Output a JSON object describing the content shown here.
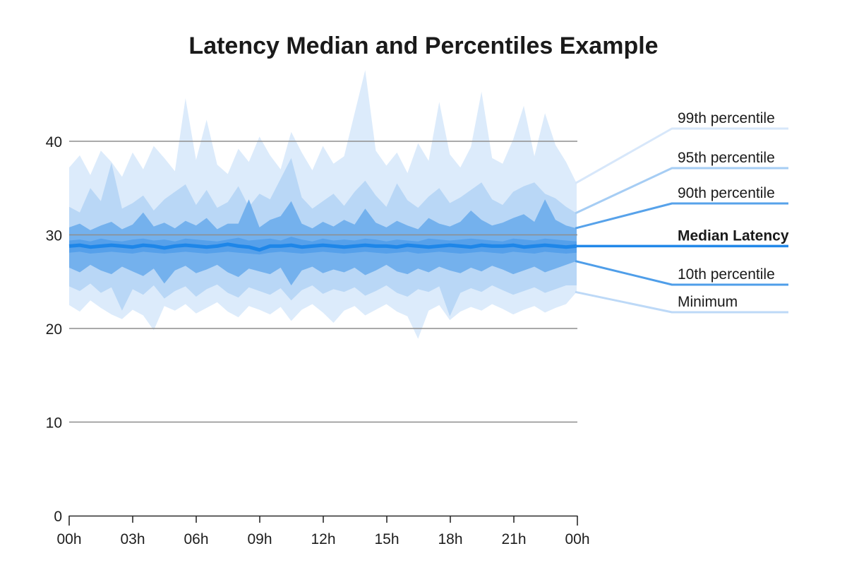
{
  "chart_data": {
    "type": "area",
    "title": "Latency Median and Percentiles Example",
    "xlabel": "",
    "ylabel": "",
    "x_ticks": [
      "00h",
      "03h",
      "06h",
      "09h",
      "12h",
      "15h",
      "18h",
      "21h",
      "00h"
    ],
    "y_ticks": [
      0,
      10,
      20,
      30,
      40
    ],
    "ylim": [
      0,
      48
    ],
    "grid": "horizontal",
    "legend_position": "right-callouts",
    "series": {
      "minimum": [
        22.5,
        21.8,
        23.0,
        22.2,
        21.5,
        21.0,
        22.0,
        21.4,
        19.8,
        22.4,
        21.9,
        22.6,
        21.6,
        22.2,
        22.8,
        21.8,
        21.2,
        22.4,
        22.0,
        21.5,
        22.3,
        20.8,
        22.0,
        22.6,
        21.7,
        20.6,
        21.9,
        22.4,
        21.4,
        22.0,
        22.6,
        21.8,
        21.3,
        18.9,
        21.9,
        22.5,
        20.9,
        21.8,
        22.3,
        21.9,
        22.6,
        22.1,
        21.5,
        22.0,
        22.4,
        21.7,
        22.2,
        22.6,
        23.9
      ],
      "p5": [
        24.5,
        24.0,
        24.8,
        23.8,
        24.4,
        21.9,
        24.2,
        23.6,
        24.6,
        23.2,
        24.0,
        24.5,
        23.4,
        24.2,
        24.7,
        23.8,
        23.3,
        24.4,
        24.0,
        23.6,
        24.3,
        23.0,
        24.1,
        24.6,
        23.7,
        24.2,
        23.9,
        24.4,
        23.5,
        24.0,
        24.6,
        23.8,
        23.4,
        24.2,
        23.9,
        24.5,
        21.3,
        23.8,
        24.3,
        23.9,
        24.6,
        24.1,
        23.6,
        24.0,
        24.4,
        23.8,
        24.2,
        24.6,
        24.6
      ],
      "p10": [
        26.5,
        26.0,
        26.8,
        26.2,
        25.8,
        26.6,
        26.1,
        25.6,
        26.4,
        24.8,
        26.2,
        26.7,
        25.9,
        26.3,
        26.8,
        26.0,
        25.5,
        26.4,
        26.1,
        25.8,
        26.5,
        24.6,
        26.2,
        26.6,
        25.9,
        26.3,
        26.0,
        26.5,
        25.7,
        26.2,
        26.8,
        26.1,
        25.8,
        26.4,
        26.0,
        26.6,
        26.2,
        25.9,
        26.5,
        26.1,
        26.7,
        26.3,
        25.8,
        26.2,
        26.6,
        26.0,
        26.4,
        26.8,
        27.2
      ],
      "p25": [
        28.1,
        28.2,
        28.0,
        28.1,
        28.2,
        28.1,
        28.0,
        28.2,
        28.1,
        28.0,
        28.1,
        28.2,
        28.1,
        28.0,
        28.1,
        28.2,
        28.1,
        28.0,
        27.9,
        28.1,
        28.2,
        28.1,
        28.0,
        28.1,
        28.2,
        28.1,
        28.0,
        28.1,
        28.2,
        28.1,
        28.0,
        28.1,
        28.2,
        28.0,
        28.1,
        28.2,
        28.1,
        28.0,
        28.1,
        28.2,
        28.1,
        28.0,
        28.2,
        28.1,
        28.0,
        28.2,
        28.1,
        28.0,
        28.1
      ],
      "median": [
        28.8,
        28.9,
        28.7,
        28.8,
        28.9,
        28.8,
        28.7,
        28.9,
        28.8,
        28.6,
        28.8,
        28.9,
        28.8,
        28.7,
        28.8,
        29.0,
        28.8,
        28.7,
        28.4,
        28.8,
        28.8,
        28.9,
        28.7,
        28.8,
        28.9,
        28.8,
        28.7,
        28.8,
        28.9,
        28.8,
        28.8,
        28.7,
        28.9,
        28.8,
        28.7,
        28.8,
        28.9,
        28.8,
        28.7,
        28.9,
        28.8,
        28.8,
        28.9,
        28.7,
        28.8,
        28.9,
        28.8,
        28.7,
        28.8
      ],
      "p75": [
        29.4,
        29.5,
        29.3,
        29.6,
        29.4,
        29.3,
        29.5,
        29.6,
        29.4,
        29.5,
        29.3,
        29.6,
        29.5,
        29.4,
        29.3,
        29.5,
        29.7,
        29.4,
        29.5,
        29.6,
        29.4,
        29.8,
        29.5,
        29.3,
        29.6,
        29.4,
        29.5,
        29.4,
        29.6,
        29.5,
        29.3,
        29.5,
        29.4,
        29.3,
        29.6,
        29.5,
        29.4,
        29.5,
        29.6,
        29.5,
        29.4,
        29.3,
        29.6,
        29.5,
        29.4,
        29.6,
        29.5,
        29.4,
        29.3
      ],
      "p90": [
        30.8,
        31.2,
        30.5,
        31.0,
        31.4,
        30.6,
        31.1,
        32.4,
        30.9,
        31.3,
        30.7,
        31.5,
        31.0,
        31.8,
        30.6,
        31.2,
        31.2,
        33.8,
        30.8,
        31.6,
        32.0,
        33.6,
        31.2,
        30.7,
        31.4,
        30.9,
        31.6,
        31.1,
        32.8,
        31.3,
        30.8,
        31.5,
        31.0,
        30.6,
        31.8,
        31.2,
        30.9,
        31.4,
        32.6,
        31.6,
        31.0,
        31.3,
        31.8,
        32.2,
        31.4,
        33.8,
        31.6,
        31.0,
        30.7
      ],
      "p95": [
        33.0,
        32.4,
        35.0,
        33.6,
        37.7,
        32.8,
        33.4,
        34.2,
        32.6,
        33.8,
        34.6,
        35.4,
        33.2,
        34.8,
        32.9,
        33.5,
        35.2,
        33.0,
        34.4,
        33.8,
        36.0,
        38.2,
        34.0,
        32.8,
        33.6,
        34.4,
        33.1,
        34.6,
        35.8,
        34.2,
        33.0,
        35.5,
        33.7,
        32.9,
        34.1,
        35.0,
        33.4,
        34.0,
        34.8,
        35.6,
        33.8,
        33.2,
        34.6,
        35.2,
        35.6,
        34.4,
        33.9,
        33.0,
        32.3
      ],
      "p99": [
        37.2,
        38.5,
        36.4,
        39.0,
        37.8,
        36.2,
        38.8,
        37.0,
        39.5,
        38.2,
        36.8,
        44.6,
        38.0,
        42.3,
        37.5,
        36.5,
        39.2,
        37.8,
        40.5,
        38.5,
        37.0,
        41.0,
        38.8,
        36.9,
        39.5,
        37.6,
        38.4,
        43.0,
        47.6,
        39.0,
        37.4,
        38.8,
        36.6,
        39.8,
        37.9,
        44.2,
        38.6,
        37.2,
        39.4,
        45.3,
        38.2,
        37.6,
        40.2,
        43.8,
        38.4,
        43.0,
        39.6,
        37.8,
        35.5
      ]
    },
    "bands": [
      {
        "upper": "p99",
        "lower": "minimum",
        "color": "#DCEBFB"
      },
      {
        "upper": "p95",
        "lower": "p5",
        "color": "#B9D7F6"
      },
      {
        "upper": "p90",
        "lower": "p10",
        "color": "#74B1ED"
      },
      {
        "upper": "p75",
        "lower": "p25",
        "color": "#56A0EA"
      }
    ],
    "median_line": {
      "series": "median",
      "color": "#1E86E8"
    },
    "legend": [
      {
        "label": "99th percentile",
        "series": "p99",
        "line_color": "#D7E7FA",
        "bold": false
      },
      {
        "label": "95th percentile",
        "series": "p95",
        "line_color": "#A6CDF4",
        "bold": false
      },
      {
        "label": "90th percentile",
        "series": "p90",
        "line_color": "#57A2EA",
        "bold": false
      },
      {
        "label": "Median Latency",
        "series": "median",
        "line_color": "#2288E9",
        "bold": true
      },
      {
        "label": "10th percentile",
        "series": "p10",
        "line_color": "#4F9EE9",
        "bold": false
      },
      {
        "label": "Minimum",
        "series": "minimum",
        "line_color": "#BDD9F7",
        "bold": false
      }
    ],
    "colors": {
      "gridline": "#8E8E8E",
      "axis": "#2A2A2A",
      "title_text": "#1A1A1A",
      "axis_text": "#1D1D1D",
      "legend_text": "#1A1A1A"
    }
  }
}
